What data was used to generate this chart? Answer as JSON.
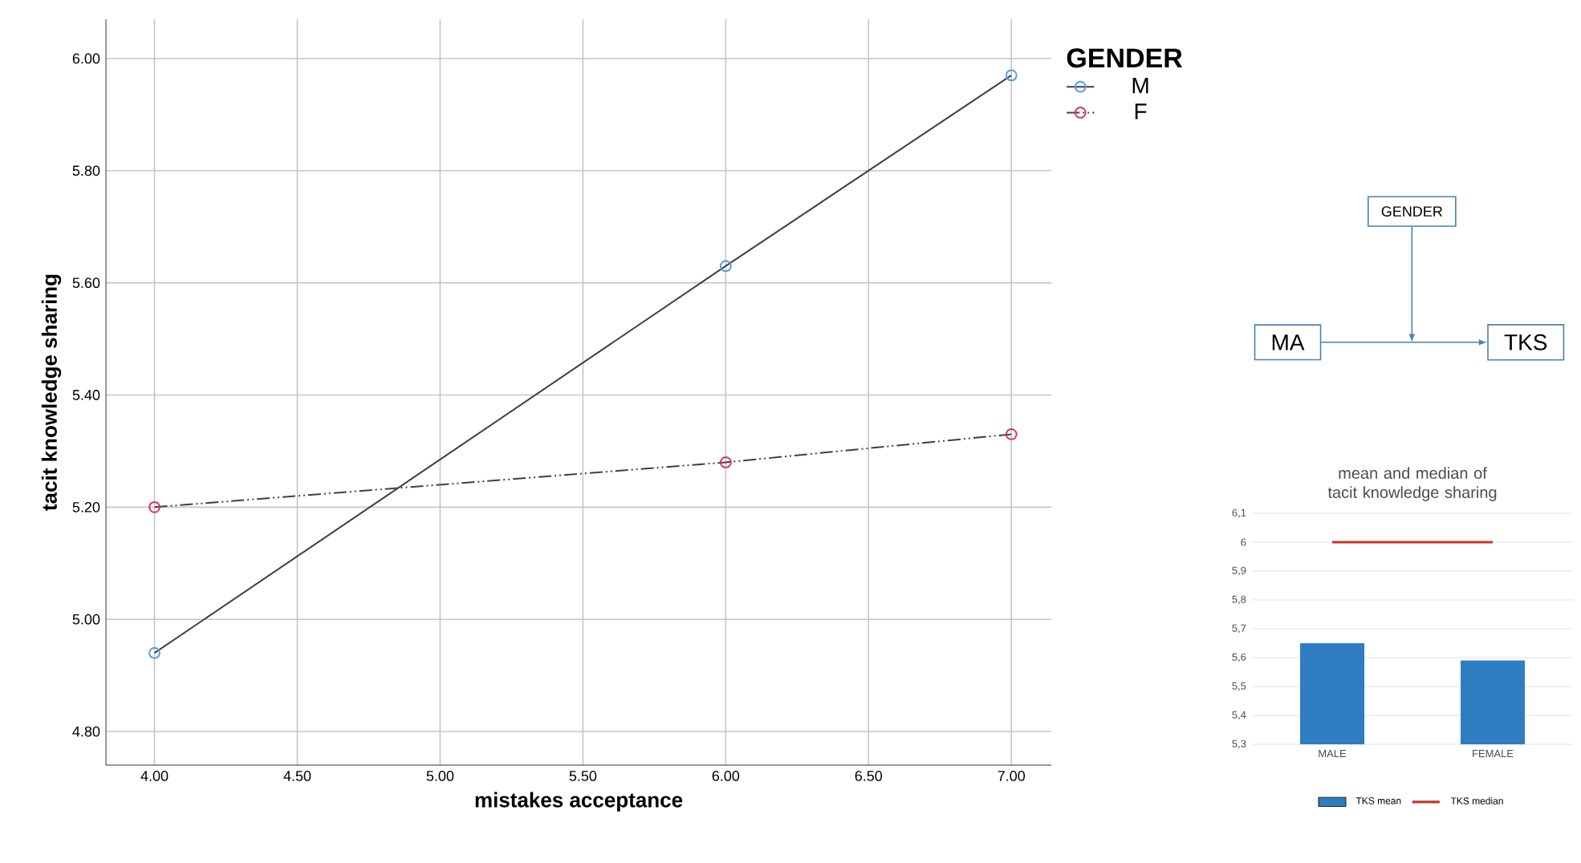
{
  "chart_data": [
    {
      "type": "line",
      "xlabel": "mistakes acceptance",
      "ylabel": "tacit knowledge sharing",
      "legend_title": "GENDER",
      "x": [
        4,
        6,
        7
      ],
      "series": [
        {
          "name": "M",
          "color": "#5b9bd5",
          "values": [
            4.94,
            5.63,
            5.97
          ],
          "line_style": "solid"
        },
        {
          "name": "F",
          "color": "#d6336c",
          "values": [
            5.2,
            5.28,
            5.33
          ],
          "line_style": "dashed"
        }
      ],
      "xlim": [
        3.83,
        7.14
      ],
      "ylim": [
        4.74,
        6.07
      ],
      "xticks": [
        {
          "value": 4,
          "label": "4.00"
        },
        {
          "value": 4.5,
          "label": "4.50"
        },
        {
          "value": 5,
          "label": "5.00"
        },
        {
          "value": 5.5,
          "label": "5.50"
        },
        {
          "value": 6,
          "label": "6.00"
        },
        {
          "value": 6.5,
          "label": "6.50"
        },
        {
          "value": 7,
          "label": "7.00"
        }
      ],
      "yticks": [
        {
          "value": 4.8,
          "label": "4.80"
        },
        {
          "value": 5,
          "label": "5.00"
        },
        {
          "value": 5.2,
          "label": "5.20"
        },
        {
          "value": 5.4,
          "label": "5.40"
        },
        {
          "value": 5.6,
          "label": "5.60"
        },
        {
          "value": 5.8,
          "label": "5.80"
        },
        {
          "value": 6,
          "label": "6.00"
        }
      ],
      "grid": true,
      "legend": "right",
      "marker": "circle"
    },
    {
      "type": "other",
      "annotations": [
        "GENDER",
        "MA",
        "TKS"
      ]
    },
    {
      "type": "bar",
      "title": "mean and median of tacit knowledge sharing",
      "categories": [
        "MALE",
        "FEMALE"
      ],
      "series": [
        {
          "name": "TKS mean",
          "type": "bar",
          "color": "#2e7dc0",
          "values": [
            5.65,
            5.59
          ]
        },
        {
          "name": "TKS median",
          "type": "line",
          "color": "#c0392b",
          "values": [
            6,
            6
          ]
        }
      ],
      "ylim": [
        5.3,
        6.1
      ],
      "yticks": [
        {
          "value": 5.3,
          "label": "5,3"
        },
        {
          "value": 5.4,
          "label": "5,4"
        },
        {
          "value": 5.5,
          "label": "5,5"
        },
        {
          "value": 5.6,
          "label": "5,6"
        },
        {
          "value": 5.7,
          "label": "5,7"
        },
        {
          "value": 5.8,
          "label": "5,8"
        },
        {
          "value": 5.9,
          "label": "5,9"
        },
        6,
        {
          "value": 6.1,
          "label": "6,1"
        }
      ],
      "grid": "y",
      "legend": "bottom"
    }
  ]
}
